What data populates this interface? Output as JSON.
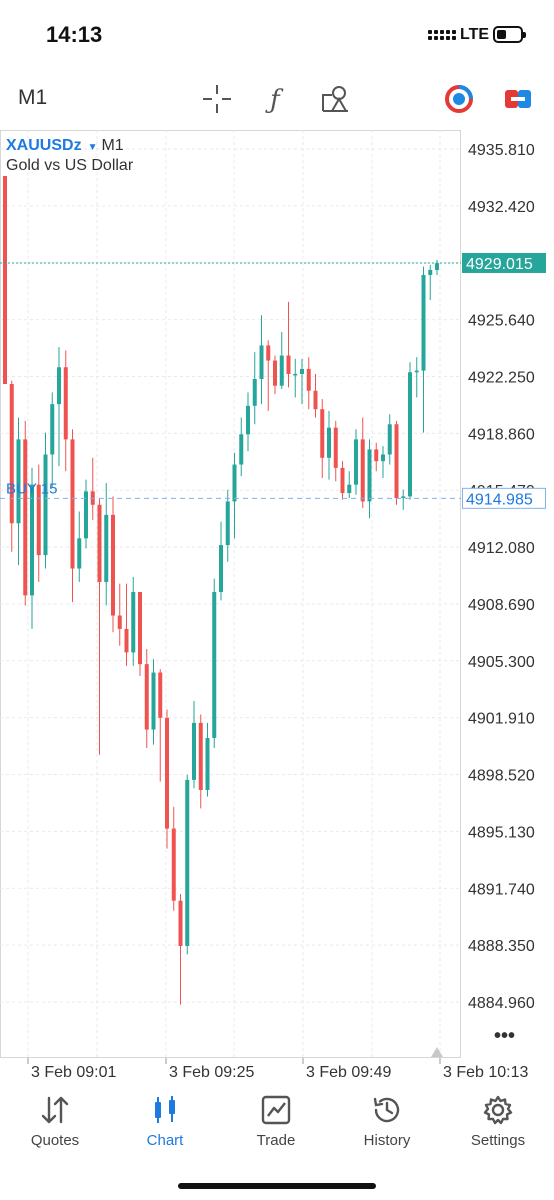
{
  "status_bar": {
    "time": "14:13",
    "network": "LTE"
  },
  "toolbar": {
    "timeframe": "M1",
    "icons": [
      "crosshair-icon",
      "function-icon",
      "objects-icon",
      "one-click-trade-icon",
      "trade-toggle-icon"
    ]
  },
  "chart": {
    "symbol": "XAUUSDz",
    "timeframe": "M1",
    "description": "Gold vs US Dollar",
    "current_price": "4929.015",
    "order_label": "BUY 15",
    "order_price": "4914.985",
    "more_menu": "•••",
    "colors": {
      "up": "#26a69a",
      "down": "#ef5350",
      "accent": "#1f7ae0"
    }
  },
  "chart_data": {
    "type": "candlestick",
    "y_ticks": [
      "4935.810",
      "4932.420",
      "4929.015",
      "4925.640",
      "4922.250",
      "4918.860",
      "4915.470",
      "4912.080",
      "4908.690",
      "4905.300",
      "4901.910",
      "4898.520",
      "4895.130",
      "4891.740",
      "4888.350",
      "4884.960"
    ],
    "x_ticks": [
      "3 Feb 09:01",
      "3 Feb 09:25",
      "3 Feb 09:49",
      "3 Feb 10:13"
    ],
    "ylim": [
      4883.5,
      4937.5
    ],
    "grid": true,
    "series": [
      {
        "o": 4934.2,
        "h": 4934.2,
        "l": 4921.8,
        "c": 4921.8
      },
      {
        "o": 4921.8,
        "h": 4922.0,
        "l": 4911.8,
        "c": 4913.5
      },
      {
        "o": 4913.5,
        "h": 4919.8,
        "l": 4911.0,
        "c": 4918.5
      },
      {
        "o": 4918.5,
        "h": 4919.6,
        "l": 4908.6,
        "c": 4909.2
      },
      {
        "o": 4909.2,
        "h": 4916.8,
        "l": 4907.2,
        "c": 4915.8
      },
      {
        "o": 4915.8,
        "h": 4917.0,
        "l": 4910.0,
        "c": 4911.6
      },
      {
        "o": 4911.6,
        "h": 4918.9,
        "l": 4910.8,
        "c": 4917.6
      },
      {
        "o": 4917.6,
        "h": 4921.3,
        "l": 4915.6,
        "c": 4920.6
      },
      {
        "o": 4920.6,
        "h": 4924.0,
        "l": 4916.9,
        "c": 4922.8
      },
      {
        "o": 4922.8,
        "h": 4923.8,
        "l": 4916.6,
        "c": 4918.5
      },
      {
        "o": 4918.5,
        "h": 4919.1,
        "l": 4908.8,
        "c": 4910.8
      },
      {
        "o": 4910.8,
        "h": 4914.2,
        "l": 4910.0,
        "c": 4912.6
      },
      {
        "o": 4912.6,
        "h": 4916.1,
        "l": 4912.0,
        "c": 4915.4
      },
      {
        "o": 4915.4,
        "h": 4917.4,
        "l": 4913.7,
        "c": 4914.6
      },
      {
        "o": 4914.6,
        "h": 4915.0,
        "l": 4899.7,
        "c": 4910.0
      },
      {
        "o": 4910.0,
        "h": 4915.9,
        "l": 4908.6,
        "c": 4914.0
      },
      {
        "o": 4914.0,
        "h": 4915.1,
        "l": 4907.0,
        "c": 4908.0
      },
      {
        "o": 4908.0,
        "h": 4909.9,
        "l": 4906.2,
        "c": 4907.2
      },
      {
        "o": 4907.2,
        "h": 4909.9,
        "l": 4905.0,
        "c": 4905.8
      },
      {
        "o": 4905.8,
        "h": 4910.3,
        "l": 4905.0,
        "c": 4909.4
      },
      {
        "o": 4909.4,
        "h": 4909.4,
        "l": 4904.4,
        "c": 4905.1
      },
      {
        "o": 4905.1,
        "h": 4906.0,
        "l": 4900.1,
        "c": 4901.2
      },
      {
        "o": 4901.2,
        "h": 4905.4,
        "l": 4900.3,
        "c": 4904.6
      },
      {
        "o": 4904.6,
        "h": 4904.8,
        "l": 4898.1,
        "c": 4901.9
      },
      {
        "o": 4901.9,
        "h": 4902.4,
        "l": 4894.1,
        "c": 4895.3
      },
      {
        "o": 4895.3,
        "h": 4896.6,
        "l": 4890.4,
        "c": 4891.0
      },
      {
        "o": 4891.0,
        "h": 4891.4,
        "l": 4884.8,
        "c": 4888.3
      },
      {
        "o": 4888.3,
        "h": 4898.5,
        "l": 4887.8,
        "c": 4898.2
      },
      {
        "o": 4898.2,
        "h": 4902.9,
        "l": 4897.7,
        "c": 4901.6
      },
      {
        "o": 4901.6,
        "h": 4902.1,
        "l": 4896.5,
        "c": 4897.6
      },
      {
        "o": 4897.6,
        "h": 4901.6,
        "l": 4897.2,
        "c": 4900.7
      },
      {
        "o": 4900.7,
        "h": 4910.2,
        "l": 4900.1,
        "c": 4909.4
      },
      {
        "o": 4909.4,
        "h": 4913.6,
        "l": 4908.9,
        "c": 4912.2
      },
      {
        "o": 4912.2,
        "h": 4915.5,
        "l": 4911.2,
        "c": 4914.8
      },
      {
        "o": 4914.8,
        "h": 4917.7,
        "l": 4912.6,
        "c": 4917.0
      },
      {
        "o": 4917.0,
        "h": 4919.8,
        "l": 4916.3,
        "c": 4918.8
      },
      {
        "o": 4918.8,
        "h": 4921.3,
        "l": 4917.8,
        "c": 4920.5
      },
      {
        "o": 4920.5,
        "h": 4923.7,
        "l": 4919.4,
        "c": 4922.1
      },
      {
        "o": 4922.1,
        "h": 4925.9,
        "l": 4920.6,
        "c": 4924.1
      },
      {
        "o": 4924.1,
        "h": 4924.4,
        "l": 4920.2,
        "c": 4923.2
      },
      {
        "o": 4923.2,
        "h": 4923.5,
        "l": 4921.2,
        "c": 4921.7
      },
      {
        "o": 4921.7,
        "h": 4924.9,
        "l": 4921.5,
        "c": 4923.5
      },
      {
        "o": 4923.5,
        "h": 4926.7,
        "l": 4921.6,
        "c": 4922.4
      },
      {
        "o": 4922.4,
        "h": 4923.3,
        "l": 4921.0,
        "c": 4922.4
      },
      {
        "o": 4922.4,
        "h": 4923.3,
        "l": 4920.6,
        "c": 4922.7
      },
      {
        "o": 4922.7,
        "h": 4923.4,
        "l": 4920.3,
        "c": 4921.4
      },
      {
        "o": 4921.4,
        "h": 4922.4,
        "l": 4919.8,
        "c": 4920.3
      },
      {
        "o": 4920.3,
        "h": 4920.9,
        "l": 4916.2,
        "c": 4917.4
      },
      {
        "o": 4917.4,
        "h": 4920.2,
        "l": 4916.1,
        "c": 4919.2
      },
      {
        "o": 4919.2,
        "h": 4919.6,
        "l": 4916.0,
        "c": 4916.8
      },
      {
        "o": 4916.8,
        "h": 4917.2,
        "l": 4914.9,
        "c": 4915.3
      },
      {
        "o": 4915.3,
        "h": 4916.6,
        "l": 4915.0,
        "c": 4915.8
      },
      {
        "o": 4915.8,
        "h": 4919.1,
        "l": 4915.2,
        "c": 4918.5
      },
      {
        "o": 4918.5,
        "h": 4919.8,
        "l": 4914.4,
        "c": 4914.8
      },
      {
        "o": 4914.8,
        "h": 4918.5,
        "l": 4913.8,
        "c": 4917.9
      },
      {
        "o": 4917.9,
        "h": 4918.3,
        "l": 4916.6,
        "c": 4917.2
      },
      {
        "o": 4917.2,
        "h": 4918.1,
        "l": 4916.2,
        "c": 4917.6
      },
      {
        "o": 4917.6,
        "h": 4920.0,
        "l": 4917.0,
        "c": 4919.4
      },
      {
        "o": 4919.4,
        "h": 4919.6,
        "l": 4914.6,
        "c": 4915.0
      },
      {
        "o": 4915.0,
        "h": 4915.5,
        "l": 4914.3,
        "c": 4915.1
      },
      {
        "o": 4915.1,
        "h": 4923.1,
        "l": 4914.9,
        "c": 4922.5
      },
      {
        "o": 4922.5,
        "h": 4923.4,
        "l": 4921.0,
        "c": 4922.6
      },
      {
        "o": 4922.6,
        "h": 4928.8,
        "l": 4918.9,
        "c": 4928.3
      },
      {
        "o": 4928.3,
        "h": 4928.9,
        "l": 4926.8,
        "c": 4928.6
      },
      {
        "o": 4928.6,
        "h": 4929.2,
        "l": 4928.3,
        "c": 4929.0
      }
    ]
  },
  "nav": [
    {
      "label": "Quotes",
      "icon": "quotes-icon"
    },
    {
      "label": "Chart",
      "icon": "chart-icon",
      "active": true
    },
    {
      "label": "Trade",
      "icon": "trade-icon"
    },
    {
      "label": "History",
      "icon": "history-icon"
    },
    {
      "label": "Settings",
      "icon": "settings-icon"
    }
  ]
}
